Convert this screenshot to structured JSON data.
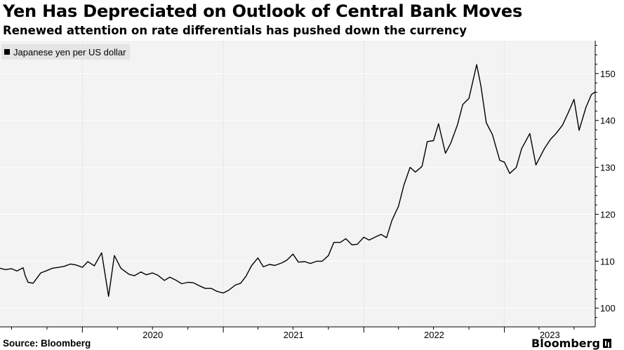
{
  "header": {
    "title": "Yen Has Depreciated on Outlook of Central Bank Moves",
    "subtitle": "Renewed attention on rate differentials has pushed down the currency"
  },
  "footer": {
    "source": "Source: Bloomberg",
    "logo": "Bloomberg"
  },
  "colors": {
    "line": "#000000",
    "grid": "#ffffff",
    "background": "#f3f3f3"
  },
  "chart_data": {
    "type": "line",
    "title": "Yen Has Depreciated on Outlook of Central Bank Moves",
    "subtitle": "Renewed attention on rate differentials has pushed down the currency",
    "legend": [
      "Japanese yen per US dollar"
    ],
    "legend_position": "top-left",
    "xlabel": "",
    "ylabel": "",
    "x_ticks": [
      "2020",
      "2021",
      "2022",
      "2023"
    ],
    "y_ticks": [
      100,
      110,
      120,
      130,
      140,
      150
    ],
    "ylim": [
      96,
      157
    ],
    "xlim": [
      "2019-06-01",
      "2023-08-25"
    ],
    "grid": true,
    "series": [
      {
        "name": "Japanese yen per US dollar",
        "x": [
          "2019-06-01",
          "2019-06-15",
          "2019-07-01",
          "2019-07-15",
          "2019-07-31",
          "2019-08-06",
          "2019-08-13",
          "2019-08-26",
          "2019-09-15",
          "2019-10-01",
          "2019-10-15",
          "2019-11-01",
          "2019-11-15",
          "2019-12-01",
          "2019-12-15",
          "2020-01-01",
          "2020-01-15",
          "2020-02-01",
          "2020-02-20",
          "2020-03-09",
          "2020-03-24",
          "2020-04-10",
          "2020-05-01",
          "2020-05-15",
          "2020-06-01",
          "2020-06-15",
          "2020-07-01",
          "2020-07-15",
          "2020-08-01",
          "2020-08-15",
          "2020-09-01",
          "2020-09-15",
          "2020-10-01",
          "2020-10-15",
          "2020-11-01",
          "2020-11-15",
          "2020-12-01",
          "2020-12-15",
          "2021-01-01",
          "2021-01-15",
          "2021-02-01",
          "2021-02-15",
          "2021-03-01",
          "2021-03-15",
          "2021-04-01",
          "2021-04-15",
          "2021-05-01",
          "2021-05-15",
          "2021-06-01",
          "2021-06-15",
          "2021-07-01",
          "2021-07-15",
          "2021-08-01",
          "2021-08-15",
          "2021-09-01",
          "2021-09-15",
          "2021-10-01",
          "2021-10-15",
          "2021-11-01",
          "2021-11-15",
          "2021-12-01",
          "2021-12-15",
          "2022-01-01",
          "2022-01-15",
          "2022-02-01",
          "2022-02-15",
          "2022-03-01",
          "2022-03-15",
          "2022-04-01",
          "2022-04-15",
          "2022-05-01",
          "2022-05-15",
          "2022-06-01",
          "2022-06-15",
          "2022-07-01",
          "2022-07-14",
          "2022-08-01",
          "2022-08-15",
          "2022-09-01",
          "2022-09-15",
          "2022-10-01",
          "2022-10-21",
          "2022-11-01",
          "2022-11-15",
          "2022-12-01",
          "2022-12-20",
          "2023-01-01",
          "2023-01-15",
          "2023-02-01",
          "2023-02-15",
          "2023-03-08",
          "2023-03-24",
          "2023-04-15",
          "2023-05-01",
          "2023-05-15",
          "2023-06-01",
          "2023-06-15",
          "2023-07-01",
          "2023-07-14",
          "2023-08-01",
          "2023-08-15",
          "2023-08-25"
        ],
        "values": [
          108.5,
          108.2,
          108.4,
          107.9,
          108.6,
          106.8,
          105.5,
          105.3,
          107.5,
          108.0,
          108.5,
          108.7,
          108.9,
          109.4,
          109.2,
          108.7,
          109.9,
          109.0,
          111.8,
          102.5,
          111.2,
          108.5,
          107.2,
          106.9,
          107.7,
          107.1,
          107.5,
          107.0,
          105.9,
          106.6,
          105.9,
          105.2,
          105.5,
          105.4,
          104.7,
          104.2,
          104.2,
          103.6,
          103.2,
          103.8,
          104.9,
          105.3,
          106.8,
          109.0,
          110.7,
          108.8,
          109.3,
          109.1,
          109.6,
          110.2,
          111.5,
          109.8,
          109.9,
          109.5,
          110.0,
          110.0,
          111.2,
          114.0,
          114.0,
          114.8,
          113.5,
          113.6,
          115.1,
          114.5,
          115.2,
          115.7,
          115.0,
          118.7,
          121.7,
          126.2,
          130.0,
          129.0,
          130.2,
          135.5,
          135.7,
          139.3,
          133.0,
          135.2,
          139.0,
          143.4,
          144.7,
          151.9,
          147.4,
          139.5,
          137.0,
          131.5,
          131.1,
          128.7,
          130.0,
          134.0,
          137.2,
          130.5,
          134.0,
          136.0,
          137.2,
          139.0,
          141.5,
          144.5,
          137.9,
          142.8,
          145.5,
          146.1
        ]
      }
    ]
  }
}
